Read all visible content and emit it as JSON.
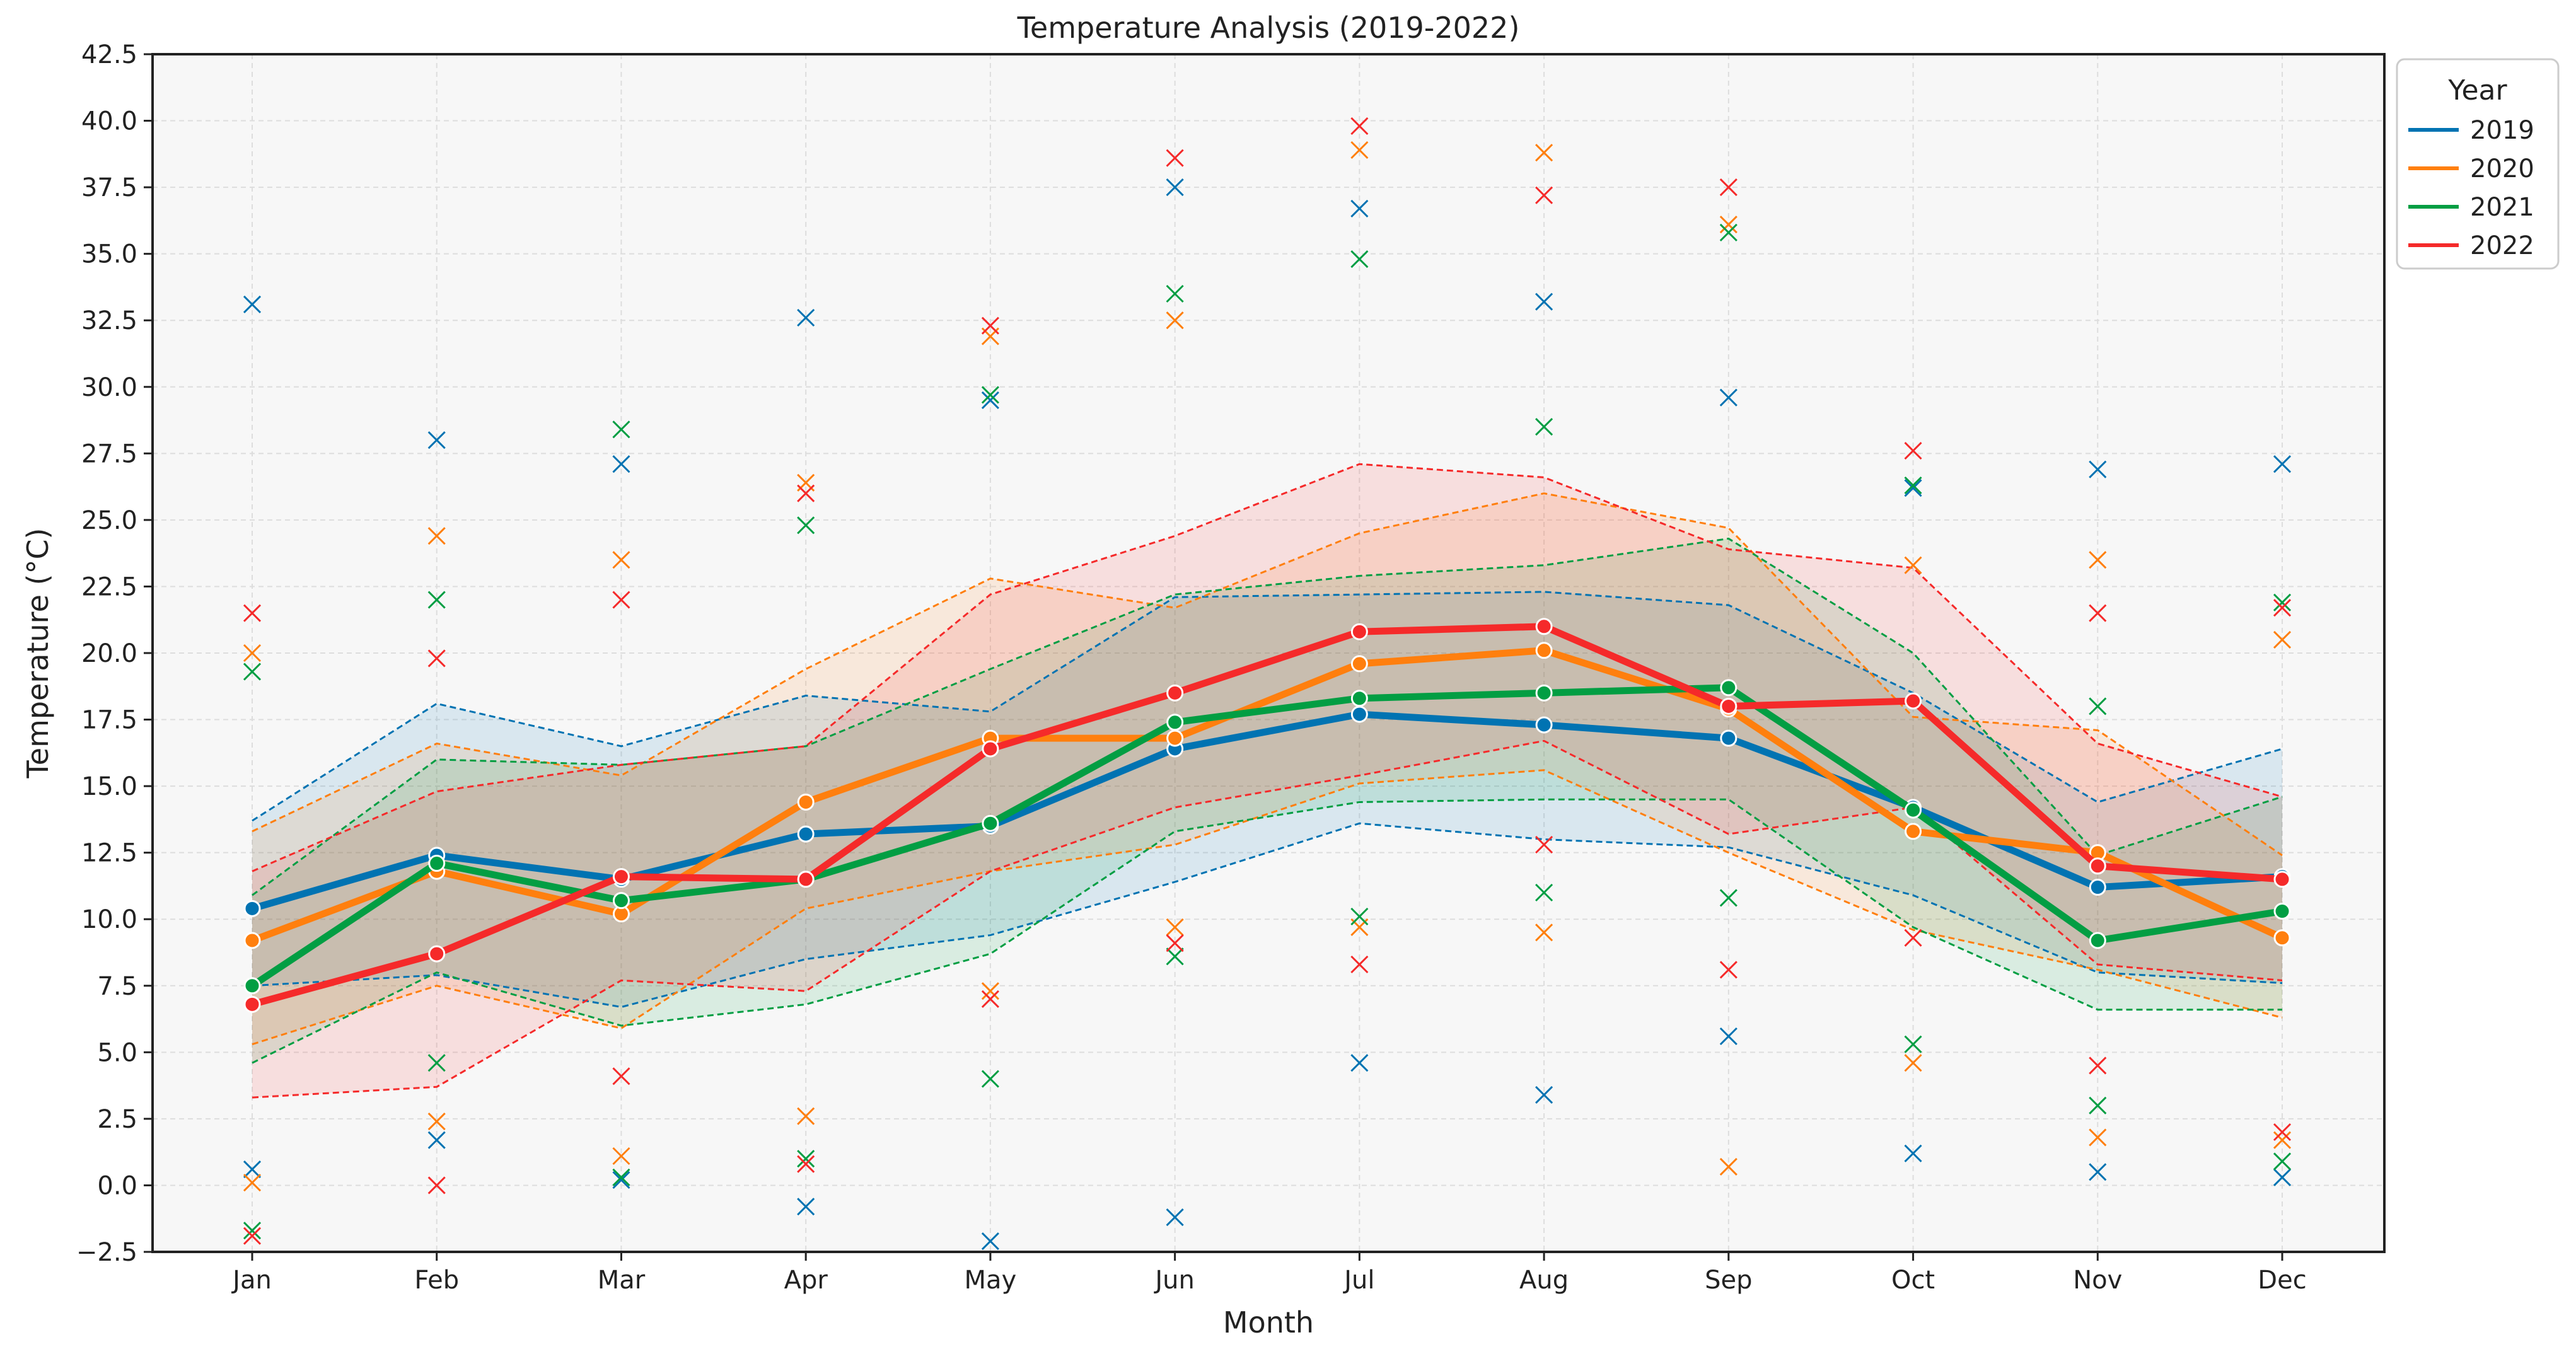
{
  "chart_data": {
    "type": "line",
    "title": "Temperature Analysis (2019-2022)",
    "xlabel": "Month",
    "ylabel": "Temperature (°C)",
    "categories": [
      "Jan",
      "Feb",
      "Mar",
      "Apr",
      "May",
      "Jun",
      "Jul",
      "Aug",
      "Sep",
      "Oct",
      "Nov",
      "Dec"
    ],
    "ylim": [
      -2.5,
      42.5
    ],
    "yticks": [
      -2.5,
      0.0,
      2.5,
      5.0,
      7.5,
      10.0,
      12.5,
      15.0,
      17.5,
      20.0,
      22.5,
      25.0,
      27.5,
      30.0,
      32.5,
      35.0,
      37.5,
      40.0,
      42.5
    ],
    "ytick_labels": [
      "−2.5",
      "0.0",
      "2.5",
      "5.0",
      "7.5",
      "10.0",
      "12.5",
      "15.0",
      "17.5",
      "20.0",
      "22.5",
      "25.0",
      "27.5",
      "30.0",
      "32.5",
      "35.0",
      "37.5",
      "40.0",
      "42.5"
    ],
    "grid": true,
    "legend": {
      "title": "Year",
      "placement": "outside-top-right"
    },
    "series": [
      {
        "name": "2019",
        "color": "#0173b2",
        "mean": [
          10.4,
          12.4,
          11.5,
          13.2,
          13.5,
          16.4,
          17.7,
          17.3,
          16.8,
          14.2,
          11.2,
          11.6
        ],
        "upper": [
          13.7,
          18.1,
          16.5,
          18.4,
          17.8,
          22.1,
          22.2,
          22.3,
          21.8,
          18.5,
          14.4,
          16.4
        ],
        "lower": [
          7.5,
          7.9,
          6.7,
          8.5,
          9.4,
          11.4,
          13.6,
          13.0,
          12.7,
          10.9,
          8.0,
          7.6
        ],
        "extremes_high": [
          33.1,
          28.0,
          27.1,
          32.6,
          29.5,
          37.5,
          36.7,
          33.2,
          29.6,
          26.2,
          26.9,
          27.1
        ],
        "extremes_low": [
          0.6,
          1.7,
          0.2,
          -0.8,
          -2.1,
          -1.2,
          4.6,
          3.4,
          5.6,
          1.2,
          0.5,
          0.3
        ]
      },
      {
        "name": "2020",
        "color": "#ff7f0e",
        "mean": [
          9.2,
          11.8,
          10.2,
          14.4,
          16.8,
          16.8,
          19.6,
          20.1,
          17.9,
          13.3,
          12.5,
          9.3
        ],
        "upper": [
          13.3,
          16.6,
          15.4,
          19.4,
          22.8,
          21.7,
          24.5,
          26.0,
          24.7,
          17.6,
          17.1,
          12.4
        ],
        "lower": [
          5.3,
          7.5,
          5.9,
          10.4,
          11.8,
          12.8,
          15.1,
          15.6,
          12.5,
          9.6,
          8.1,
          6.3
        ],
        "extremes_high": [
          20.0,
          24.4,
          23.5,
          26.4,
          31.9,
          32.5,
          38.9,
          38.8,
          36.1,
          23.3,
          23.5,
          20.5
        ],
        "extremes_low": [
          0.1,
          2.4,
          1.1,
          2.6,
          7.3,
          9.7,
          9.7,
          9.5,
          0.7,
          4.6,
          1.8,
          1.7
        ]
      },
      {
        "name": "2021",
        "color": "#029e43",
        "mean": [
          7.5,
          12.1,
          10.7,
          11.5,
          13.6,
          17.4,
          18.3,
          18.5,
          18.7,
          14.1,
          9.2,
          10.3
        ],
        "upper": [
          10.9,
          16.0,
          15.8,
          16.5,
          19.4,
          22.2,
          22.9,
          23.3,
          24.3,
          20.0,
          12.4,
          14.6
        ],
        "lower": [
          4.6,
          8.0,
          6.0,
          6.8,
          8.7,
          13.3,
          14.4,
          14.5,
          14.5,
          9.7,
          6.6,
          6.6
        ],
        "extremes_high": [
          19.3,
          22.0,
          28.4,
          24.8,
          29.7,
          33.5,
          34.8,
          28.5,
          35.8,
          26.3,
          18.0,
          21.9
        ],
        "extremes_low": [
          -1.7,
          4.6,
          0.3,
          1.0,
          4.0,
          8.6,
          10.1,
          11.0,
          10.8,
          5.3,
          3.0,
          0.9
        ]
      },
      {
        "name": "2022",
        "color": "#f52a2a",
        "mean": [
          6.8,
          8.7,
          11.6,
          11.5,
          16.4,
          18.5,
          20.8,
          21.0,
          18.0,
          18.2,
          12.0,
          11.5
        ],
        "upper": [
          11.8,
          14.8,
          15.8,
          16.5,
          22.2,
          24.4,
          27.1,
          26.6,
          23.9,
          23.2,
          16.6,
          14.6
        ],
        "lower": [
          3.3,
          3.7,
          7.7,
          7.3,
          11.8,
          14.2,
          15.4,
          16.7,
          13.2,
          14.2,
          8.3,
          7.7
        ],
        "extremes_high": [
          21.5,
          19.8,
          22.0,
          26.0,
          32.3,
          38.6,
          39.8,
          37.2,
          37.5,
          27.6,
          21.5,
          21.7
        ],
        "extremes_low": [
          -1.9,
          0.0,
          4.1,
          0.8,
          7.0,
          9.1,
          8.3,
          12.8,
          8.1,
          9.3,
          4.5,
          2.0
        ]
      }
    ]
  }
}
